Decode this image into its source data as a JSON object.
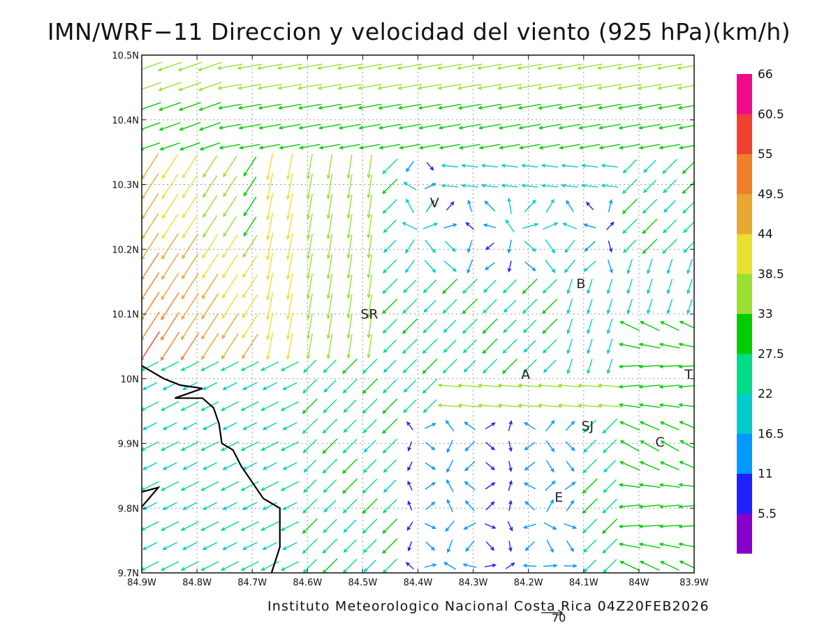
{
  "title": "IMN/WRF−11 Direccion y velocidad del viento (925 hPa)(km/h)",
  "credit": "Instituto Meteorologico Nacional Costa Rica 04Z20FEB2026",
  "reference_vector_label": "70",
  "axes": {
    "lat_min": 9.7,
    "lat_max": 10.5,
    "lon_min": -84.9,
    "lon_max": -83.9,
    "lat_ticks": [
      "9.7N",
      "9.8N",
      "9.9N",
      "10N",
      "10.1N",
      "10.2N",
      "10.3N",
      "10.4N",
      "10.5N"
    ],
    "lon_ticks": [
      "84.9W",
      "84.8W",
      "84.7W",
      "84.6W",
      "84.5W",
      "84.4W",
      "84.3W",
      "84.2W",
      "84.1W",
      "84W",
      "83.9W"
    ]
  },
  "cities": [
    {
      "label": "V",
      "lon": -84.37,
      "lat": 10.265
    },
    {
      "label": "SR",
      "lon": -84.488,
      "lat": 10.093
    },
    {
      "label": "B",
      "lon": -84.105,
      "lat": 10.14
    },
    {
      "label": "A",
      "lon": -84.205,
      "lat": 10.0
    },
    {
      "label": "SJ",
      "lon": -84.093,
      "lat": 9.92
    },
    {
      "label": "C",
      "lon": -83.962,
      "lat": 9.895
    },
    {
      "label": "E",
      "lon": -84.145,
      "lat": 9.81
    },
    {
      "label": "T",
      "lon": -83.91,
      "lat": 10.0
    }
  ],
  "colorbar": {
    "labels": [
      "5.5",
      "11",
      "16.5",
      "22",
      "27.5",
      "33",
      "38.5",
      "44",
      "49.5",
      "55",
      "60.5",
      "66"
    ],
    "colors": [
      "#8800cc",
      "#2020ff",
      "#0099ff",
      "#00cccc",
      "#00dd88",
      "#00cc00",
      "#99e030",
      "#e8e030",
      "#e8a830",
      "#f08028",
      "#f04030",
      "#f00a8c"
    ]
  },
  "coastline_lonlat": [
    [
      -84.9,
      10.02
    ],
    [
      -84.86,
      10.0
    ],
    [
      -84.83,
      9.99
    ],
    [
      -84.79,
      9.985
    ],
    [
      -84.84,
      9.97
    ],
    [
      -84.79,
      9.97
    ],
    [
      -84.77,
      9.955
    ],
    [
      -84.76,
      9.93
    ],
    [
      -84.755,
      9.9
    ],
    [
      -84.735,
      9.89
    ],
    [
      -84.72,
      9.865
    ],
    [
      -84.7,
      9.84
    ],
    [
      -84.68,
      9.815
    ],
    [
      -84.65,
      9.8
    ],
    [
      -84.65,
      9.74
    ],
    [
      -84.665,
      9.7
    ]
  ],
  "coastline2_lonlat": [
    [
      -84.9,
      9.825
    ],
    [
      -84.87,
      9.832
    ],
    [
      -84.9,
      9.802
    ]
  ]
}
